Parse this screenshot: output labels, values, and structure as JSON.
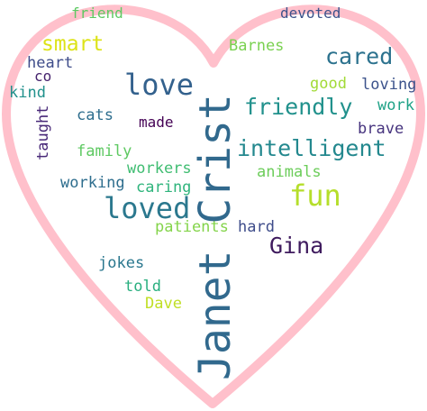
{
  "words": {
    "janet_crist": {
      "text": "Janet Crist",
      "color": "#31698d"
    },
    "love": {
      "text": "love",
      "color": "#33618d"
    },
    "loved": {
      "text": "loved",
      "color": "#2b788e"
    },
    "fun": {
      "text": "fun",
      "color": "#b5de2b"
    },
    "intelligent": {
      "text": "intelligent",
      "color": "#23888e"
    },
    "friendly": {
      "text": "friendly",
      "color": "#21918c"
    },
    "cared": {
      "text": "cared",
      "color": "#2c728e"
    },
    "smart": {
      "text": "smart",
      "color": "#dde318"
    },
    "gina": {
      "text": "Gina",
      "color": "#3f1b5e"
    },
    "friend": {
      "text": "friend",
      "color": "#5ec962"
    },
    "devoted": {
      "text": "devoted",
      "color": "#3b528b"
    },
    "barnes": {
      "text": "Barnes",
      "color": "#7ad151"
    },
    "heart": {
      "text": "heart",
      "color": "#3e4c8a"
    },
    "co": {
      "text": "co",
      "color": "#45226d"
    },
    "kind": {
      "text": "kind",
      "color": "#21918c"
    },
    "taught": {
      "text": "taught",
      "color": "#482878"
    },
    "good": {
      "text": "good",
      "color": "#a2da37"
    },
    "loving": {
      "text": "loving",
      "color": "#3b528b"
    },
    "work": {
      "text": "work",
      "color": "#1fa287"
    },
    "cats": {
      "text": "cats",
      "color": "#2e6e8e"
    },
    "made": {
      "text": "made",
      "color": "#440154"
    },
    "brave": {
      "text": "brave",
      "color": "#46337e"
    },
    "family": {
      "text": "family",
      "color": "#5ec962"
    },
    "workers": {
      "text": "workers",
      "color": "#40bd72"
    },
    "animals": {
      "text": "animals",
      "color": "#6ccd5a"
    },
    "working": {
      "text": "working",
      "color": "#2e6e8e"
    },
    "caring": {
      "text": "caring",
      "color": "#2fb47c"
    },
    "patients": {
      "text": "patients",
      "color": "#84d44b"
    },
    "hard": {
      "text": "hard",
      "color": "#3e4c8a"
    },
    "jokes": {
      "text": "jokes",
      "color": "#2a778e"
    },
    "told": {
      "text": "told",
      "color": "#29af7f"
    },
    "dave": {
      "text": "Dave",
      "color": "#c0df25"
    }
  },
  "heart_outline_color": "#ffc0cb"
}
